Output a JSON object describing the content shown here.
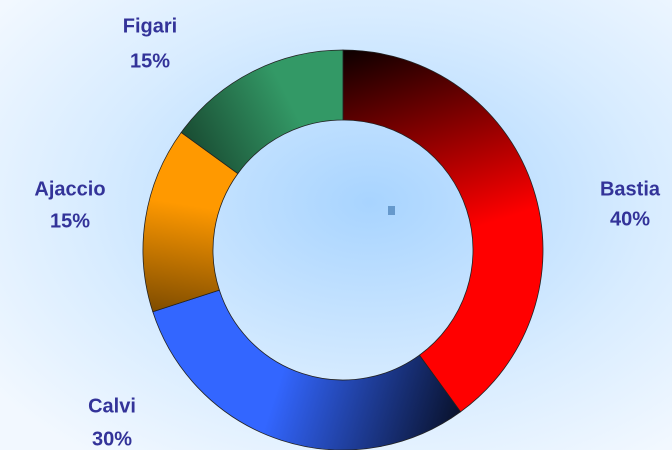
{
  "chart_data": {
    "type": "donut",
    "categories": [
      "Bastia",
      "Calvi",
      "Ajaccio",
      "Figari"
    ],
    "values": [
      40,
      30,
      15,
      15
    ],
    "value_labels": [
      "40%",
      "30%",
      "15%",
      "15%"
    ],
    "colors": [
      "#ff0000",
      "#3366ff",
      "#ff9900",
      "#339966"
    ]
  }
}
